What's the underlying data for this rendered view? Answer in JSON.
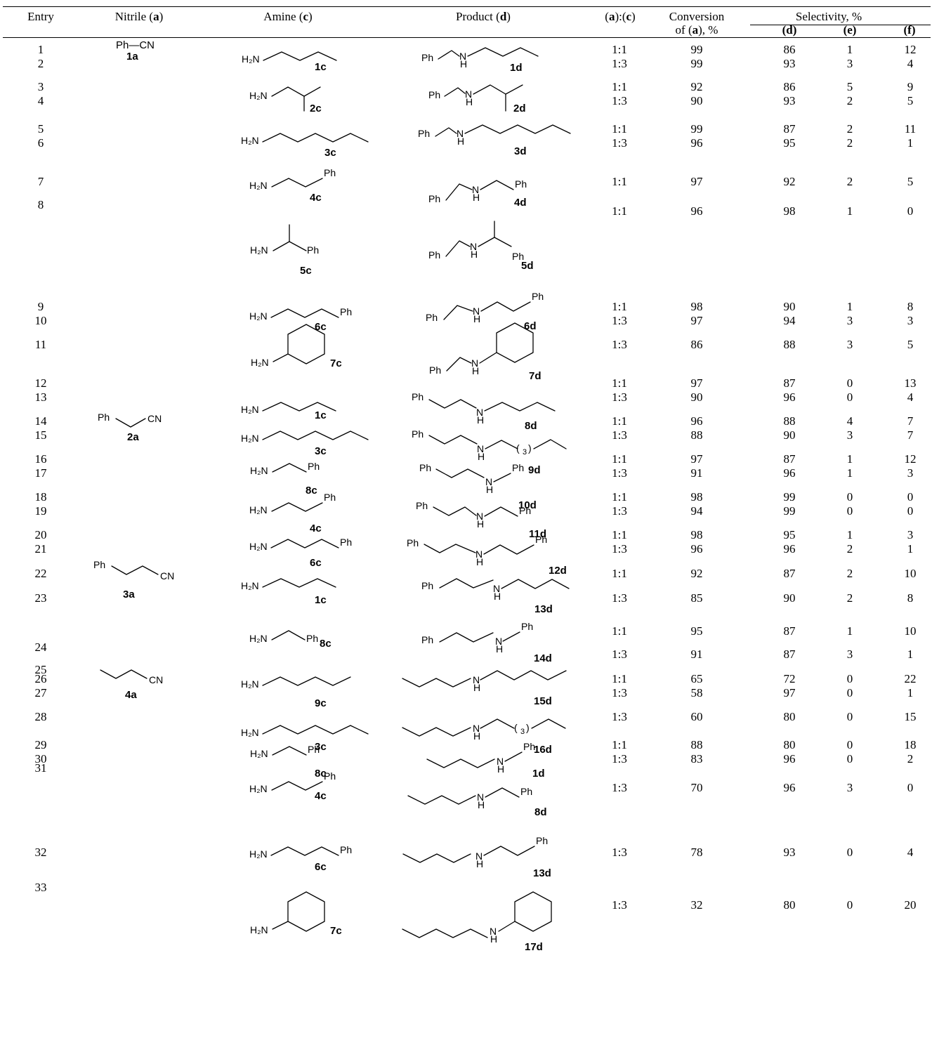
{
  "header": {
    "entry": "Entry",
    "nitrile": "Nitrile",
    "nitrile_letter": "a",
    "amine": "Amine",
    "amine_letter": "c",
    "product": "Product",
    "product_letter": "d",
    "ratio_a": "a",
    "ratio_c": "c",
    "conversion_line1": "Conversion",
    "conversion_line2": "of (a), %",
    "selectivity": "Selectivity, %",
    "sel_d": "(d)",
    "sel_e": "(e)",
    "sel_f": "(f)"
  },
  "rows": [
    {
      "entry": "1",
      "ratio": "1:1",
      "conv": "99",
      "d": "86",
      "e": "1",
      "f": "12"
    },
    {
      "entry": "2",
      "ratio": "1:3",
      "conv": "99",
      "d": "93",
      "e": "3",
      "f": "4"
    },
    {
      "entry": "3",
      "ratio": "1:1",
      "conv": "92",
      "d": "86",
      "e": "5",
      "f": "9"
    },
    {
      "entry": "4",
      "ratio": "1:3",
      "conv": "90",
      "d": "93",
      "e": "2",
      "f": "5"
    },
    {
      "entry": "5",
      "ratio": "1:1",
      "conv": "99",
      "d": "87",
      "e": "2",
      "f": "11"
    },
    {
      "entry": "6",
      "ratio": "1:3",
      "conv": "96",
      "d": "95",
      "e": "2",
      "f": "1"
    },
    {
      "entry": "7",
      "ratio": "1:1",
      "conv": "97",
      "d": "92",
      "e": "2",
      "f": "5"
    },
    {
      "entry": "8",
      "ratio": "1:1",
      "conv": "96",
      "d": "98",
      "e": "1",
      "f": "0"
    },
    {
      "entry": "9",
      "ratio": "1:1",
      "conv": "98",
      "d": "90",
      "e": "1",
      "f": "8"
    },
    {
      "entry": "10",
      "ratio": "1:3",
      "conv": "97",
      "d": "94",
      "e": "3",
      "f": "3"
    },
    {
      "entry": "11",
      "ratio": "1:3",
      "conv": "86",
      "d": "88",
      "e": "3",
      "f": "5"
    },
    {
      "entry": "12",
      "ratio": "1:1",
      "conv": "97",
      "d": "87",
      "e": "0",
      "f": "13"
    },
    {
      "entry": "13",
      "ratio": "1:3",
      "conv": "90",
      "d": "96",
      "e": "0",
      "f": "4"
    },
    {
      "entry": "14",
      "ratio": "1:1",
      "conv": "96",
      "d": "88",
      "e": "4",
      "f": "7"
    },
    {
      "entry": "15",
      "ratio": "1:3",
      "conv": "88",
      "d": "90",
      "e": "3",
      "f": "7"
    },
    {
      "entry": "16",
      "ratio": "1:1",
      "conv": "97",
      "d": "87",
      "e": "1",
      "f": "12"
    },
    {
      "entry": "17",
      "ratio": "1:3",
      "conv": "91",
      "d": "96",
      "e": "1",
      "f": "3"
    },
    {
      "entry": "18",
      "ratio": "1:1",
      "conv": "98",
      "d": "99",
      "e": "0",
      "f": "0"
    },
    {
      "entry": "19",
      "ratio": "1:3",
      "conv": "94",
      "d": "99",
      "e": "0",
      "f": "0"
    },
    {
      "entry": "20",
      "ratio": "1:1",
      "conv": "98",
      "d": "95",
      "e": "1",
      "f": "3"
    },
    {
      "entry": "21",
      "ratio": "1:3",
      "conv": "96",
      "d": "96",
      "e": "2",
      "f": "1"
    },
    {
      "entry": "22",
      "ratio": "1:1",
      "conv": "92",
      "d": "87",
      "e": "2",
      "f": "10"
    },
    {
      "entry": "23",
      "ratio": "1:3",
      "conv": "85",
      "d": "90",
      "e": "2",
      "f": "8"
    },
    {
      "entry": "24",
      "ratio": "1:1",
      "conv": "95",
      "d": "87",
      "e": "1",
      "f": "10"
    },
    {
      "entry": "25",
      "ratio": "1:3",
      "conv": "91",
      "d": "87",
      "e": "3",
      "f": "1"
    },
    {
      "entry": "26",
      "ratio": "1:1",
      "conv": "65",
      "d": "72",
      "e": "0",
      "f": "22"
    },
    {
      "entry": "27",
      "ratio": "1:3",
      "conv": "58",
      "d": "97",
      "e": "0",
      "f": "1"
    },
    {
      "entry": "28",
      "ratio": "1:3",
      "conv": "60",
      "d": "80",
      "e": "0",
      "f": "15"
    },
    {
      "entry": "29",
      "ratio": "1:1",
      "conv": "88",
      "d": "80",
      "e": "0",
      "f": "18"
    },
    {
      "entry": "30",
      "ratio": "1:3",
      "conv": "83",
      "d": "96",
      "e": "0",
      "f": "2"
    },
    {
      "entry": "31",
      "ratio": "1:3",
      "conv": "70",
      "d": "96",
      "e": "3",
      "f": "0"
    },
    {
      "entry": "32",
      "ratio": "1:3",
      "conv": "78",
      "d": "93",
      "e": "0",
      "f": "4"
    },
    {
      "entry": "33",
      "ratio": "1:3",
      "conv": "32",
      "d": "80",
      "e": "0",
      "f": "20"
    }
  ],
  "nitriles": [
    {
      "label": "1a",
      "formula": "Ph—CN"
    },
    {
      "label": "2a",
      "ph": "Ph",
      "cn": "CN"
    },
    {
      "label": "3a",
      "ph": "Ph",
      "cn": "CN"
    },
    {
      "label": "4a",
      "cn": "CN"
    }
  ],
  "chem_text": {
    "h2n": "H₂N",
    "ph": "Ph",
    "n": "N",
    "h": "H",
    "sub3": "3",
    "paren_open": "(",
    "paren_close": ")"
  },
  "compound_labels": {
    "amines": [
      "1c",
      "2c",
      "3c",
      "4c",
      "5c",
      "6c",
      "7c",
      "1c",
      "3c",
      "8c",
      "4c",
      "6c",
      "1c",
      "8c",
      "9c",
      "3c",
      "8c",
      "4c",
      "6c",
      "7c"
    ],
    "products": [
      "1d",
      "2d",
      "3d",
      "4d",
      "5d",
      "6d",
      "7d",
      "8d",
      "9d",
      "10d",
      "11d",
      "12d",
      "13d",
      "14d",
      "15d",
      "16d",
      "1d",
      "8d",
      "13d",
      "17d"
    ]
  }
}
